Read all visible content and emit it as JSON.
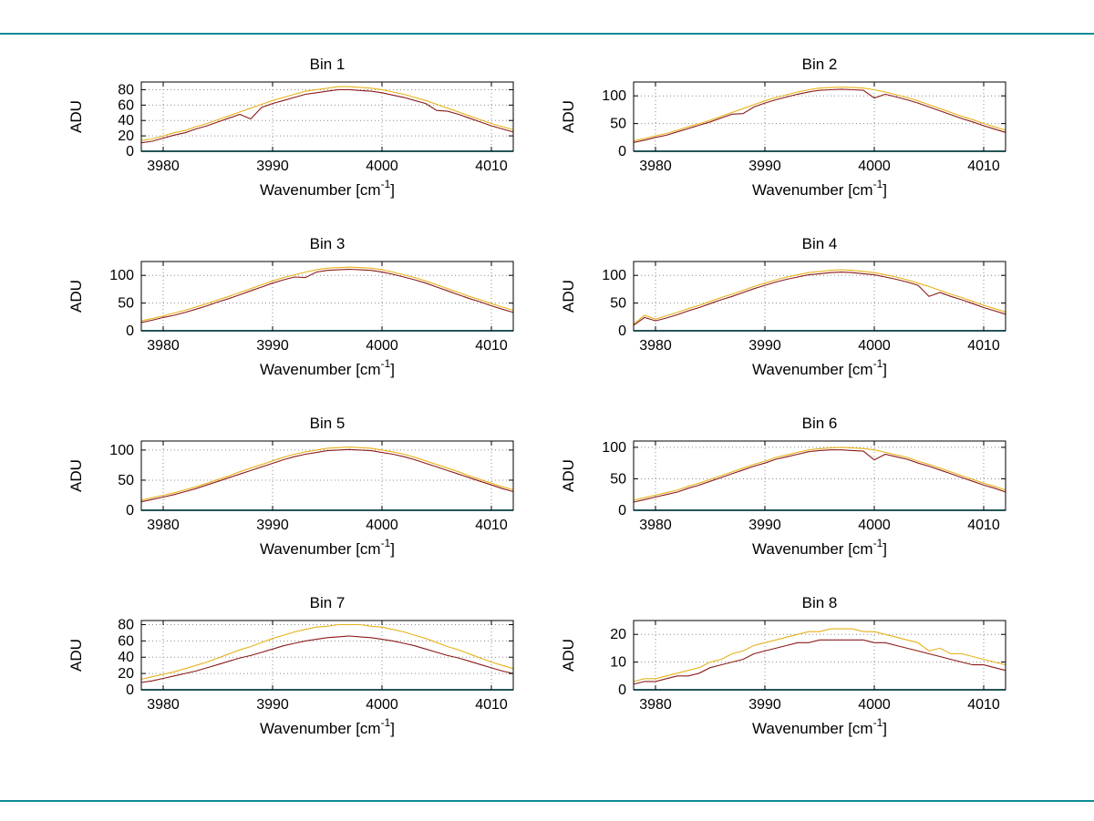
{
  "page": {
    "background": "#ffffff"
  },
  "figure": {
    "frame_line_color": "#0f8b96",
    "colors": {
      "series_upper": "#e6b219",
      "series_lower": "#8b1a1a",
      "baseline": "#0f8b96",
      "grid": "#8c8c8c",
      "axis": "#000000"
    }
  },
  "chart_data": [
    {
      "type": "line",
      "title": "Bin 1",
      "ylabel": "ADU",
      "xlabel_base": "Wavenumber [cm",
      "xlabel_sup": "-1",
      "xlabel_close": "]",
      "xlim": [
        3978,
        4012
      ],
      "ylim": [
        0,
        90
      ],
      "xticks": [
        3980,
        3990,
        4000,
        4010
      ],
      "yticks": [
        0,
        20,
        40,
        60,
        80
      ],
      "x_start": 3978,
      "x_step": 1,
      "grid": true,
      "series": [
        {
          "name": "upper",
          "color_key": "series_upper",
          "y": [
            14,
            16,
            20,
            24,
            27,
            32,
            36,
            41,
            46,
            51,
            56,
            61,
            66,
            70,
            74,
            78,
            80,
            82,
            84,
            84,
            83,
            82,
            80,
            77,
            74,
            70,
            66,
            61,
            56,
            51,
            46,
            41,
            36,
            32,
            28
          ]
        },
        {
          "name": "lower",
          "color_key": "series_lower",
          "y": [
            11,
            13,
            17,
            21,
            24,
            29,
            33,
            38,
            43,
            48,
            42,
            57,
            62,
            66,
            70,
            74,
            76,
            78,
            80,
            80,
            79,
            78,
            76,
            73,
            70,
            66,
            62,
            53,
            52,
            48,
            43,
            38,
            33,
            29,
            25
          ]
        },
        {
          "name": "baseline",
          "color_key": "baseline",
          "const_y": 0
        }
      ]
    },
    {
      "type": "line",
      "title": "Bin 2",
      "ylabel": "ADU",
      "xlabel_base": "Wavenumber [cm",
      "xlabel_sup": "-1",
      "xlabel_close": "]",
      "xlim": [
        3978,
        4012
      ],
      "ylim": [
        0,
        125
      ],
      "xticks": [
        3980,
        3990,
        4000,
        4010
      ],
      "yticks": [
        0,
        50,
        100
      ],
      "x_start": 3978,
      "x_step": 1,
      "grid": true,
      "series": [
        {
          "name": "upper",
          "color_key": "series_upper",
          "y": [
            19,
            23,
            28,
            32,
            38,
            44,
            50,
            56,
            63,
            70,
            77,
            84,
            91,
            97,
            102,
            107,
            111,
            114,
            115,
            116,
            115,
            114,
            111,
            107,
            102,
            97,
            91,
            84,
            77,
            70,
            63,
            57,
            50,
            44,
            38
          ]
        },
        {
          "name": "lower",
          "color_key": "series_lower",
          "y": [
            16,
            20,
            25,
            29,
            35,
            41,
            47,
            53,
            60,
            67,
            68,
            80,
            87,
            93,
            98,
            103,
            107,
            110,
            111,
            112,
            111,
            110,
            96,
            103,
            98,
            93,
            87,
            80,
            73,
            66,
            59,
            53,
            46,
            40,
            34
          ]
        },
        {
          "name": "baseline",
          "color_key": "baseline",
          "const_y": 0
        }
      ]
    },
    {
      "type": "line",
      "title": "Bin 3",
      "ylabel": "ADU",
      "xlabel_base": "Wavenumber [cm",
      "xlabel_sup": "-1",
      "xlabel_close": "]",
      "xlim": [
        3978,
        4012
      ],
      "ylim": [
        0,
        125
      ],
      "xticks": [
        3980,
        3990,
        4000,
        4010
      ],
      "yticks": [
        0,
        50,
        100
      ],
      "x_start": 3978,
      "x_step": 1,
      "grid": true,
      "series": [
        {
          "name": "upper",
          "color_key": "series_upper",
          "y": [
            18,
            22,
            27,
            32,
            37,
            43,
            49,
            56,
            62,
            69,
            76,
            83,
            90,
            96,
            101,
            106,
            110,
            113,
            114,
            115,
            114,
            113,
            110,
            106,
            101,
            96,
            90,
            83,
            76,
            69,
            62,
            56,
            49,
            43,
            37
          ]
        },
        {
          "name": "lower",
          "color_key": "series_lower",
          "y": [
            15,
            19,
            24,
            28,
            33,
            39,
            45,
            52,
            58,
            65,
            72,
            79,
            86,
            92,
            97,
            96,
            106,
            109,
            110,
            111,
            110,
            109,
            106,
            102,
            97,
            92,
            86,
            79,
            72,
            65,
            58,
            52,
            45,
            39,
            33
          ]
        },
        {
          "name": "baseline",
          "color_key": "baseline",
          "const_y": 0
        }
      ]
    },
    {
      "type": "line",
      "title": "Bin 4",
      "ylabel": "ADU",
      "xlabel_base": "Wavenumber [cm",
      "xlabel_sup": "-1",
      "xlabel_close": "]",
      "xlim": [
        3978,
        4012
      ],
      "ylim": [
        0,
        125
      ],
      "xticks": [
        3980,
        3990,
        4000,
        4010
      ],
      "yticks": [
        0,
        50,
        100
      ],
      "x_start": 3978,
      "x_step": 1,
      "grid": true,
      "series": [
        {
          "name": "upper",
          "color_key": "series_upper",
          "y": [
            12,
            28,
            21,
            27,
            33,
            40,
            46,
            53,
            60,
            66,
            73,
            80,
            86,
            92,
            97,
            101,
            105,
            107,
            109,
            110,
            109,
            107,
            105,
            101,
            97,
            92,
            86,
            80,
            73,
            66,
            60,
            53,
            46,
            40,
            34
          ]
        },
        {
          "name": "lower",
          "color_key": "series_lower",
          "y": [
            10,
            24,
            18,
            23,
            29,
            36,
            42,
            49,
            56,
            62,
            69,
            76,
            82,
            88,
            93,
            97,
            101,
            103,
            105,
            106,
            105,
            103,
            101,
            97,
            93,
            88,
            82,
            62,
            69,
            62,
            56,
            49,
            42,
            36,
            30
          ]
        },
        {
          "name": "baseline",
          "color_key": "baseline",
          "const_y": 0
        }
      ]
    },
    {
      "type": "line",
      "title": "Bin 5",
      "ylabel": "ADU",
      "xlabel_base": "Wavenumber [cm",
      "xlabel_sup": "-1",
      "xlabel_close": "]",
      "xlim": [
        3978,
        4012
      ],
      "ylim": [
        0,
        115
      ],
      "xticks": [
        3980,
        3990,
        4000,
        4010
      ],
      "yticks": [
        0,
        50,
        100
      ],
      "x_start": 3978,
      "x_step": 1,
      "grid": true,
      "series": [
        {
          "name": "upper",
          "color_key": "series_upper",
          "y": [
            17,
            21,
            25,
            29,
            34,
            39,
            45,
            51,
            57,
            64,
            70,
            76,
            82,
            88,
            93,
            97,
            100,
            103,
            104,
            105,
            104,
            103,
            100,
            97,
            93,
            88,
            82,
            76,
            70,
            64,
            57,
            51,
            45,
            39,
            34
          ]
        },
        {
          "name": "lower",
          "color_key": "series_lower",
          "y": [
            14,
            18,
            22,
            26,
            31,
            36,
            42,
            48,
            54,
            60,
            66,
            72,
            78,
            84,
            89,
            93,
            96,
            99,
            100,
            101,
            100,
            99,
            96,
            93,
            89,
            84,
            78,
            72,
            66,
            60,
            54,
            48,
            42,
            36,
            31
          ]
        },
        {
          "name": "baseline",
          "color_key": "baseline",
          "const_y": 0
        }
      ]
    },
    {
      "type": "line",
      "title": "Bin 6",
      "ylabel": "ADU",
      "xlabel_base": "Wavenumber [cm",
      "xlabel_sup": "-1",
      "xlabel_close": "]",
      "xlim": [
        3978,
        4012
      ],
      "ylim": [
        0,
        110
      ],
      "xticks": [
        3980,
        3990,
        4000,
        4010
      ],
      "yticks": [
        0,
        50,
        100
      ],
      "x_start": 3978,
      "x_step": 1,
      "grid": true,
      "series": [
        {
          "name": "upper",
          "color_key": "series_upper",
          "y": [
            16,
            20,
            24,
            28,
            32,
            38,
            43,
            49,
            55,
            61,
            67,
            73,
            78,
            84,
            88,
            92,
            96,
            98,
            99,
            100,
            99,
            98,
            96,
            92,
            88,
            84,
            78,
            73,
            67,
            61,
            55,
            49,
            43,
            38,
            32
          ]
        },
        {
          "name": "lower",
          "color_key": "series_lower",
          "y": [
            13,
            17,
            21,
            25,
            29,
            35,
            40,
            46,
            52,
            58,
            64,
            70,
            75,
            81,
            85,
            89,
            93,
            95,
            96,
            96,
            95,
            94,
            80,
            89,
            85,
            81,
            75,
            70,
            64,
            58,
            52,
            46,
            40,
            35,
            29
          ]
        },
        {
          "name": "baseline",
          "color_key": "baseline",
          "const_y": 0
        }
      ]
    },
    {
      "type": "line",
      "title": "Bin 7",
      "ylabel": "ADU",
      "xlabel_base": "Wavenumber [cm",
      "xlabel_sup": "-1",
      "xlabel_close": "]",
      "xlim": [
        3978,
        4012
      ],
      "ylim": [
        0,
        85
      ],
      "xticks": [
        3980,
        3990,
        4000,
        4010
      ],
      "yticks": [
        0,
        20,
        40,
        60,
        80
      ],
      "x_start": 3978,
      "x_step": 1,
      "grid": true,
      "series": [
        {
          "name": "upper",
          "color_key": "series_upper",
          "y": [
            13,
            16,
            19,
            22,
            26,
            30,
            34,
            39,
            44,
            49,
            53,
            58,
            63,
            67,
            71,
            74,
            77,
            78,
            80,
            80,
            80,
            78,
            77,
            74,
            71,
            67,
            63,
            58,
            53,
            49,
            44,
            39,
            34,
            30,
            26
          ]
        },
        {
          "name": "lower",
          "color_key": "series_lower",
          "y": [
            9,
            11,
            14,
            17,
            20,
            23,
            27,
            31,
            35,
            39,
            42,
            46,
            50,
            54,
            57,
            60,
            62,
            64,
            65,
            66,
            65,
            64,
            62,
            60,
            57,
            54,
            50,
            46,
            42,
            39,
            35,
            31,
            27,
            23,
            20
          ]
        },
        {
          "name": "baseline",
          "color_key": "baseline",
          "const_y": 0
        }
      ]
    },
    {
      "type": "line",
      "title": "Bin 8",
      "ylabel": "ADU",
      "xlabel_base": "Wavenumber [cm",
      "xlabel_sup": "-1",
      "xlabel_close": "]",
      "xlim": [
        3978,
        4012
      ],
      "ylim": [
        0,
        25
      ],
      "xticks": [
        3980,
        3990,
        4000,
        4010
      ],
      "yticks": [
        0,
        10,
        20
      ],
      "x_start": 3978,
      "x_step": 1,
      "grid": true,
      "series": [
        {
          "name": "upper",
          "color_key": "series_upper",
          "y": [
            3,
            4,
            4,
            5,
            6,
            7,
            8,
            10,
            11,
            13,
            14,
            16,
            17,
            18,
            19,
            20,
            21,
            21,
            22,
            22,
            22,
            21,
            21,
            20,
            19,
            18,
            17,
            14,
            15,
            13,
            13,
            12,
            11,
            10,
            9
          ]
        },
        {
          "name": "lower",
          "color_key": "series_lower",
          "y": [
            2,
            3,
            3,
            4,
            5,
            5,
            6,
            8,
            9,
            10,
            11,
            13,
            14,
            15,
            16,
            17,
            17,
            18,
            18,
            18,
            18,
            18,
            17,
            17,
            16,
            15,
            14,
            13,
            12,
            11,
            10,
            9,
            9,
            8,
            7
          ]
        },
        {
          "name": "baseline",
          "color_key": "baseline",
          "const_y": 0
        }
      ]
    }
  ]
}
